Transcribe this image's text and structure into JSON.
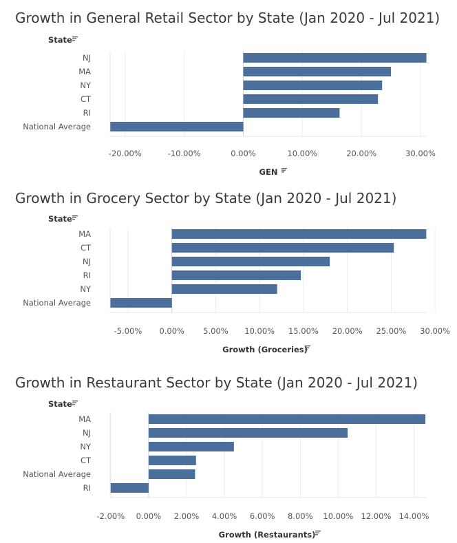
{
  "chart_data": [
    {
      "type": "bar",
      "orientation": "horizontal",
      "title": "Growth in General Retail Sector by State (Jan 2020 - Jul 2021)",
      "row_header": "State",
      "xlabel": "GEN",
      "categories": [
        "NJ",
        "MA",
        "NY",
        "CT",
        "RI",
        "National Average"
      ],
      "values": [
        0.31,
        0.25,
        0.235,
        0.228,
        0.163,
        -0.225
      ],
      "ticks": [
        -0.2,
        -0.1,
        0.0,
        0.1,
        0.2,
        0.3
      ],
      "tick_labels": [
        "-20.00%",
        "-10.00%",
        "0.00%",
        "10.00%",
        "20.00%",
        "30.00%"
      ],
      "xlim": [
        -0.2254,
        0.3105
      ],
      "grid": true,
      "color": "#4a6f9a"
    },
    {
      "type": "bar",
      "orientation": "horizontal",
      "title": "Growth in Grocery Sector by State (Jan 2020 - Jul 2021)",
      "row_header": "State",
      "xlabel": "Growth (Groceries)",
      "categories": [
        "MA",
        "CT",
        "NJ",
        "RI",
        "NY",
        "National Average"
      ],
      "values": [
        0.29,
        0.253,
        0.18,
        0.147,
        0.12,
        -0.07
      ],
      "ticks": [
        -0.05,
        0.0,
        0.05,
        0.1,
        0.15,
        0.2,
        0.25,
        0.3
      ],
      "tick_labels": [
        "-5.00%",
        "0.00%",
        "5.00%",
        "10.00%",
        "15.00%",
        "20.00%",
        "25.00%",
        "30.00%"
      ],
      "xlim": [
        -0.0704,
        0.2905
      ],
      "grid": true,
      "color": "#4a6f9a"
    },
    {
      "type": "bar",
      "orientation": "horizontal",
      "title": "Growth in Restaurant Sector by State (Jan 2020 - Jul 2021)",
      "row_header": "State",
      "xlabel": "Growth (Restaurants)",
      "categories": [
        "MA",
        "NJ",
        "NY",
        "CT",
        "National Average",
        "RI"
      ],
      "values": [
        0.146,
        0.105,
        0.045,
        0.025,
        0.0245,
        -0.02
      ],
      "ticks": [
        -0.02,
        0.0,
        0.02,
        0.04,
        0.06,
        0.08,
        0.1,
        0.12,
        0.14
      ],
      "tick_labels": [
        "-2.00%",
        "0.00%",
        "2.00%",
        "4.00%",
        "6.00%",
        "8.00%",
        "10.00%",
        "12.00%",
        "14.00%"
      ],
      "xlim": [
        -0.0203,
        0.1467
      ],
      "grid": true,
      "color": "#4a6f9a"
    }
  ]
}
